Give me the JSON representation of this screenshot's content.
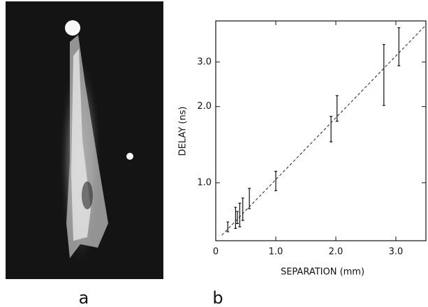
{
  "chart_data": {
    "type": "errorbar",
    "ylog": true,
    "x_label": "SEPARATION (mm)",
    "y_label": "DELAY (ns)",
    "panel_labels": [
      "a",
      "b"
    ],
    "xlim": [
      0,
      3.5
    ],
    "ylim": [
      0.59,
      4.36
    ],
    "xticks": [
      0,
      {
        "value": 1,
        "label": "1.0"
      },
      {
        "value": 2,
        "label": "2.0"
      },
      {
        "value": 3,
        "label": "3.0"
      }
    ],
    "yticks": [
      {
        "value": 1,
        "label": "1.0"
      },
      {
        "value": 2,
        "label": "2.0"
      },
      {
        "value": 3,
        "label": "3.0"
      }
    ],
    "series": [
      {
        "x": [
          0.2,
          0.33,
          0.36,
          0.4,
          0.45,
          0.56,
          1.0,
          1.92,
          2.02,
          2.8,
          3.05
        ],
        "values": [
          0.67,
          0.73,
          0.73,
          0.75,
          0.79,
          0.87,
          1.02,
          1.64,
          1.98,
          2.77,
          3.5
        ],
        "errors": [
          0.03,
          0.07,
          0.04,
          0.08,
          0.08,
          0.08,
          0.09,
          0.19,
          0.23,
          0.75,
          0.6
        ],
        "color": "#111111"
      },
      {
        "x": [
          0.1,
          3.5
        ],
        "values": [
          0.62,
          4.2
        ],
        "color": "#222222",
        "dashed": true
      }
    ]
  }
}
